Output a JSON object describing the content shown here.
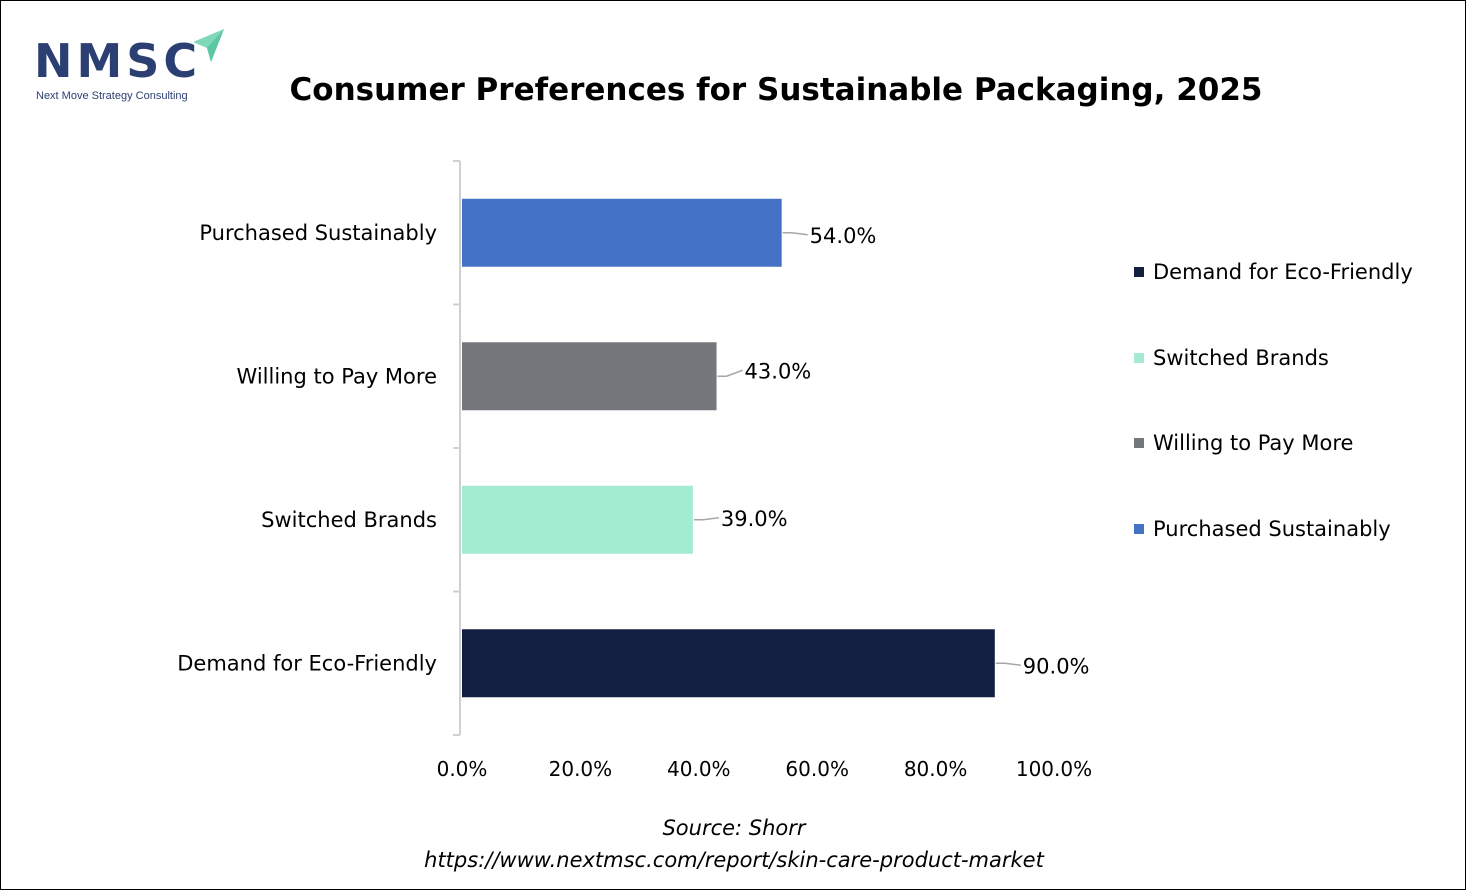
{
  "brand": {
    "logo_text": "NMSC",
    "logo_tagline": "Next Move Strategy Consulting",
    "logo_color": "#2c3f73",
    "arrow_color": "#7fd9b8"
  },
  "chart_data": {
    "type": "bar",
    "orientation": "horizontal",
    "title": "Consumer Preferences for Sustainable Packaging, 2025",
    "categories": [
      "Purchased Sustainably",
      "Willing to Pay More",
      "Switched Brands",
      "Demand for Eco-Friendly"
    ],
    "values": [
      54.0,
      43.0,
      39.0,
      90.0
    ],
    "value_labels": [
      "54.0%",
      "43.0%",
      "39.0%",
      "90.0%"
    ],
    "colors": [
      "#4472c4",
      "#74787c",
      "#a3ebd1",
      "#131f40"
    ],
    "xlim": [
      0,
      100
    ],
    "x_ticks": [
      "0.0%",
      "20.0%",
      "40.0%",
      "60.0%",
      "80.0%",
      "100.0%"
    ],
    "x_tick_values": [
      0,
      20,
      40,
      60,
      80,
      100
    ],
    "grid": false,
    "legend_position": "right",
    "legend": [
      {
        "label": "Demand for Eco-Friendly",
        "color": "#131f40"
      },
      {
        "label": "Switched Brands",
        "color": "#a3ebd1"
      },
      {
        "label": "Willing to Pay More",
        "color": "#74787c"
      },
      {
        "label": "Purchased Sustainably",
        "color": "#4472c4"
      }
    ]
  },
  "source": {
    "line1": "Source: Shorr",
    "line2": "https://www.nextmsc.com/report/skin-care-product-market"
  }
}
